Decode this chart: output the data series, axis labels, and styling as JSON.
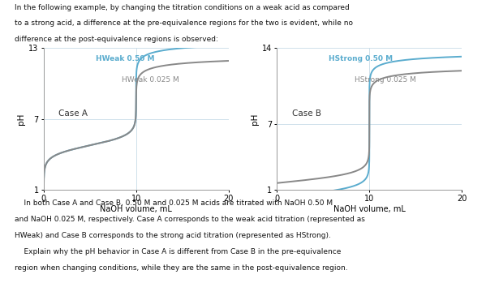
{
  "title_line1": "In the following example, by changing the titration conditions on a weak acid as compared",
  "title_line2": "to a strong acid, a difference at the pre-equivalence regions for the two is evident, while no",
  "title_line3": "difference at the post-equivalence regions is observed:",
  "bottom_text_1": "    In both Case A and Case B, 0.50 M and 0.025 M acids are titrated with NaOH 0.50 M",
  "bottom_text_2": "and NaOH 0.025 M, respectively. Case A corresponds to the weak acid titration (represented as",
  "bottom_text_3": "HWeak) and Case B corresponds to the strong acid titration (represented as HStrong).",
  "bottom_text_4": "    Explain why the pH behavior in Case A is different from Case B in the pre-equivalence",
  "bottom_text_5": "region when changing conditions, while they are the same in the post-equivalence region.",
  "case_a_label": "Case A",
  "case_b_label": "Case B",
  "xlabel": "NaOH volume, mL",
  "ylabel": "pH",
  "color_blue": "#5aacce",
  "color_gray": "#888888",
  "bg_color": "#ffffff",
  "grid_color": "#c8dce8",
  "case_a_ylim": [
    1,
    13
  ],
  "case_a_yticks": [
    1,
    7,
    13
  ],
  "case_b_ylim": [
    1,
    14
  ],
  "case_b_yticks": [
    1,
    7,
    14
  ],
  "xlim": [
    0,
    20
  ],
  "xticks": [
    0,
    10,
    20
  ],
  "label_hweak_050": "HWeak 0.50 M",
  "label_hweak_025": "HWeak 0.025 M",
  "label_hstrong_050": "HStrong 0.50 M",
  "label_hstrong_025": "HStrong 0.025 M"
}
